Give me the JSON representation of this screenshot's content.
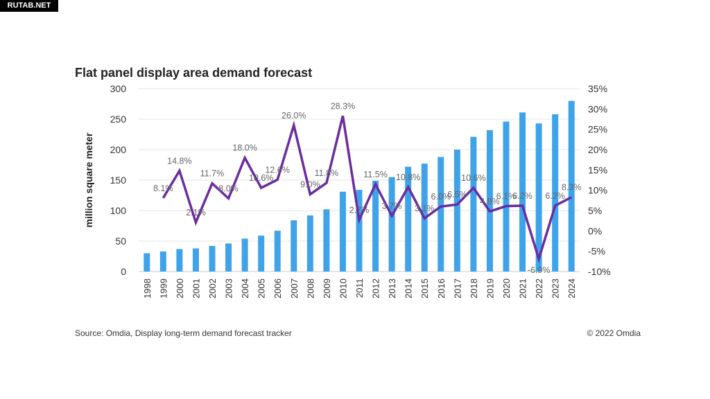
{
  "watermark": "RUTAB.NET",
  "source": "Source: Omdia, Display long-term demand forecast tracker",
  "copyright": "©  2022 Omdia",
  "colors": {
    "bars": "#3fa3ea",
    "line": "#6a2ca0"
  },
  "chart_data": {
    "type": "bar+line",
    "title": "Flat panel display area demand forecast",
    "ylabel": "million square meter",
    "ylim": [
      0,
      300
    ],
    "yticks": [
      0,
      50,
      100,
      150,
      200,
      250,
      300
    ],
    "y2lim": [
      -10,
      35
    ],
    "y2ticks": [
      "-10%",
      "-5%",
      "0%",
      "5%",
      "10%",
      "15%",
      "20%",
      "25%",
      "30%",
      "35%"
    ],
    "grid": true,
    "categories": [
      "1998",
      "1999",
      "2000",
      "2001",
      "2002",
      "2003",
      "2004",
      "2005",
      "2006",
      "2007",
      "2008",
      "2009",
      "2010",
      "2011",
      "2012",
      "2013",
      "2014",
      "2015",
      "2016",
      "2017",
      "2018",
      "2019",
      "2020",
      "2021",
      "2022",
      "2023",
      "2024"
    ],
    "series": [
      {
        "type": "bar",
        "axis": "left",
        "values": [
          30,
          33,
          37,
          38,
          42,
          46,
          54,
          59,
          67,
          84,
          92,
          102,
          131,
          134,
          149,
          155,
          172,
          177,
          188,
          200,
          221,
          232,
          246,
          261,
          243,
          258,
          280
        ]
      },
      {
        "type": "line",
        "axis": "right",
        "values": [
          null,
          8.1,
          14.8,
          2.1,
          11.7,
          8.0,
          18.0,
          10.6,
          12.6,
          26.0,
          9.0,
          11.8,
          28.3,
          2.7,
          11.5,
          3.7,
          10.8,
          3.1,
          6.0,
          6.5,
          10.6,
          4.8,
          6.1,
          6.2,
          -6.9,
          6.2,
          8.3
        ],
        "labels": [
          null,
          "8.1%",
          "14.8%",
          "2.1%",
          "11.7%",
          "8.0%",
          "18.0%",
          "10.6%",
          "12.6%",
          "26.0%",
          "9.0%",
          "11.8%",
          "28.3%",
          "2.7%",
          "11.5%",
          "3.7%",
          "10.8%",
          "3.1%",
          "6.0%",
          "6.5%",
          "10.6%",
          "4.8%",
          "6.1%",
          "6.2%",
          "-6.9%",
          "6.2%",
          "8.3%"
        ]
      }
    ]
  }
}
